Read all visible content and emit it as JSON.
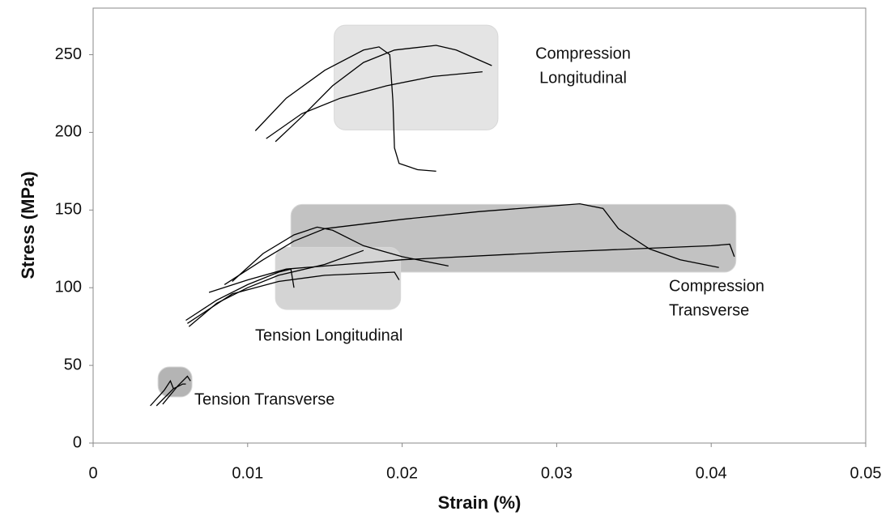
{
  "chart_data": {
    "type": "line",
    "x_label": "Strain (%)",
    "y_label": "Stress (MPa)",
    "xlim": [
      0,
      0.05
    ],
    "ylim": [
      0,
      280
    ],
    "xticks": [
      0,
      0.01,
      0.02,
      0.03,
      0.04,
      0.05
    ],
    "yticks": [
      0,
      50,
      100,
      150,
      200,
      250
    ],
    "regions": [
      {
        "lines": [
          "Compression",
          "Longitudinal"
        ],
        "xlim": [
          0.0156,
          0.0262
        ],
        "ylim": [
          201.6,
          269
        ],
        "color": "#e4e4e4"
      },
      {
        "lines": [
          "Compression",
          "Transverse"
        ],
        "xlim": [
          0.0128,
          0.0416
        ],
        "ylim": [
          110,
          153.6
        ],
        "color": "#c2c2c2"
      },
      {
        "lines": [
          "Tension Longitudinal"
        ],
        "xlim": [
          0.0118,
          0.0199
        ],
        "ylim": [
          86,
          126
        ],
        "color": "#d4d4d4"
      },
      {
        "lines": [
          "Tension Transverse"
        ],
        "xlim": [
          0.0042,
          0.0064
        ],
        "ylim": [
          29.7,
          49
        ],
        "color": "#b4b4b4"
      }
    ],
    "series": [
      {
        "color": "#000000",
        "x": [
          0.0105,
          0.0125,
          0.015,
          0.0175,
          0.0185,
          0.0192,
          0.0194,
          0.0195,
          0.0198,
          0.021,
          0.0222
        ],
        "values": [
          201,
          222,
          240,
          253,
          255,
          250,
          220,
          190,
          180,
          176,
          175
        ]
      },
      {
        "color": "#000000",
        "x": [
          0.0112,
          0.0135,
          0.016,
          0.019,
          0.022,
          0.0252
        ],
        "values": [
          196,
          212,
          222,
          230,
          236,
          239
        ]
      },
      {
        "color": "#000000",
        "x": [
          0.0118,
          0.0135,
          0.0155,
          0.0175,
          0.0195,
          0.0222,
          0.0235,
          0.0258
        ],
        "values": [
          194,
          210,
          230,
          245,
          253,
          256,
          253,
          243
        ]
      },
      {
        "color": "#000000",
        "x": [
          0.0085,
          0.011,
          0.013,
          0.015,
          0.02,
          0.025,
          0.0315,
          0.033,
          0.034,
          0.036,
          0.038,
          0.0405
        ],
        "values": [
          102,
          118,
          130,
          138,
          144,
          149,
          154,
          151,
          138,
          125,
          118,
          113
        ]
      },
      {
        "color": "#000000",
        "x": [
          0.009,
          0.011,
          0.013,
          0.0145,
          0.0155,
          0.0175,
          0.02,
          0.023
        ],
        "values": [
          104,
          122,
          134,
          139,
          137,
          127,
          120,
          114
        ]
      },
      {
        "color": "#000000",
        "x": [
          0.0075,
          0.01,
          0.0125,
          0.02,
          0.03,
          0.04,
          0.0412,
          0.0415
        ],
        "values": [
          97,
          105,
          112,
          118,
          123,
          127,
          128,
          120
        ]
      },
      {
        "color": "#000000",
        "x": [
          0.006,
          0.008,
          0.01,
          0.012,
          0.0128,
          0.013
        ],
        "values": [
          79,
          92,
          102,
          110,
          112,
          100
        ]
      },
      {
        "color": "#000000",
        "x": [
          0.0062,
          0.008,
          0.01,
          0.012,
          0.015,
          0.0175
        ],
        "values": [
          75,
          90,
          100,
          108,
          115,
          124
        ]
      },
      {
        "color": "#000000",
        "x": [
          0.0061,
          0.009,
          0.012,
          0.015,
          0.0195,
          0.0198
        ],
        "values": [
          77,
          96,
          104,
          108,
          110,
          105
        ]
      },
      {
        "color": "#000000",
        "x": [
          0.0037,
          0.0046,
          0.005,
          0.0052
        ],
        "values": [
          24,
          34,
          40,
          35
        ]
      },
      {
        "color": "#000000",
        "x": [
          0.0041,
          0.0052,
          0.0058,
          0.006
        ],
        "values": [
          24,
          35,
          38,
          38
        ]
      },
      {
        "color": "#000000",
        "x": [
          0.0045,
          0.0055,
          0.0061,
          0.0063
        ],
        "values": [
          25,
          37,
          43,
          40
        ]
      }
    ]
  }
}
